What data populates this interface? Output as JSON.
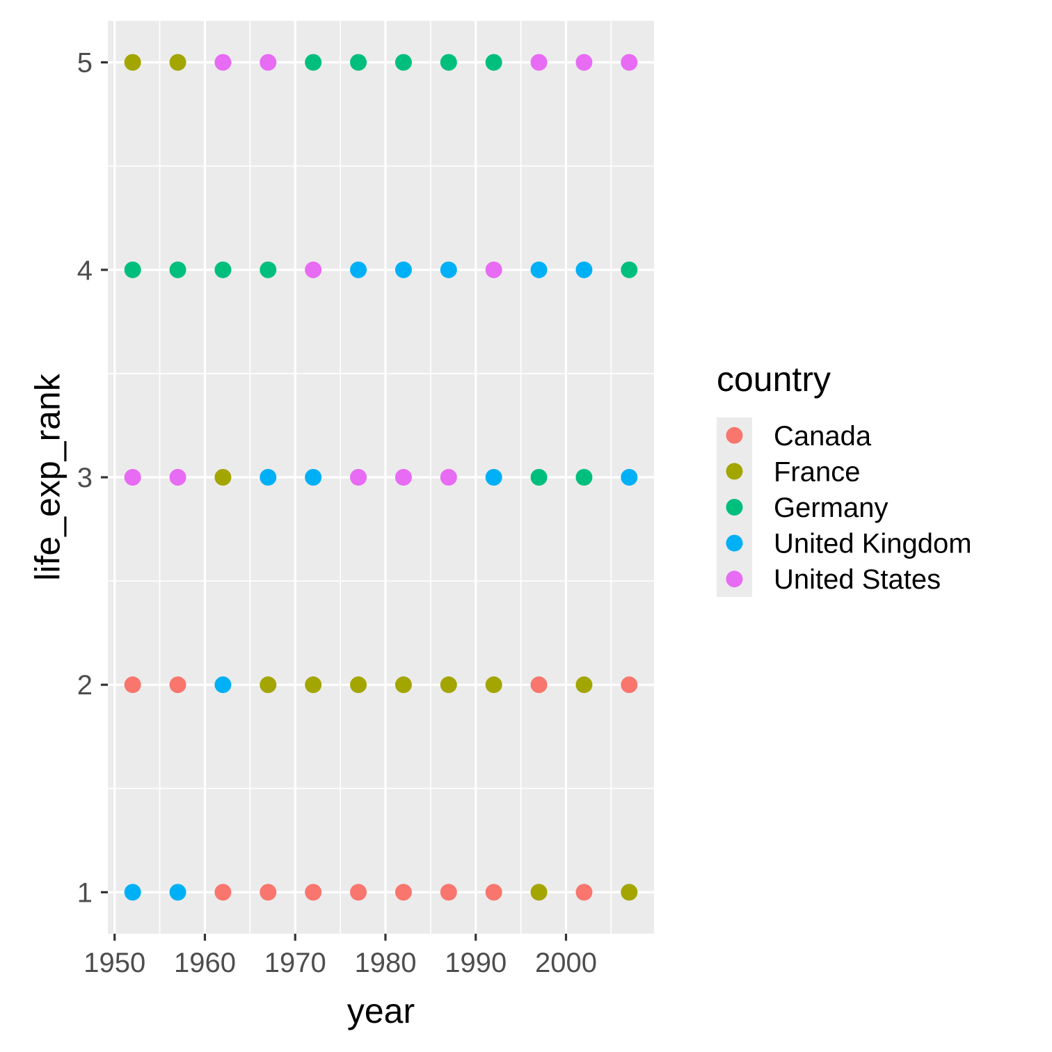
{
  "chart_data": {
    "type": "scatter",
    "xlabel": "year",
    "ylabel": "life_exp_rank",
    "xlim": [
      1949.25,
      2009.75
    ],
    "ylim": [
      0.8,
      5.2
    ],
    "x_ticks": [
      1950,
      1960,
      1970,
      1980,
      1990,
      2000
    ],
    "y_ticks": [
      1,
      2,
      3,
      4,
      5
    ],
    "grid": true,
    "legend": {
      "title": "country",
      "position": "right"
    },
    "series": [
      {
        "name": "Canada",
        "color": "#F8766D",
        "x": [
          1952,
          1957,
          1962,
          1967,
          1972,
          1977,
          1982,
          1987,
          1992,
          1997,
          2002,
          2007
        ],
        "y": [
          2,
          2,
          1,
          1,
          1,
          1,
          1,
          1,
          1,
          2,
          1,
          2
        ]
      },
      {
        "name": "France",
        "color": "#A3A500",
        "x": [
          1952,
          1957,
          1962,
          1967,
          1972,
          1977,
          1982,
          1987,
          1992,
          1997,
          2002,
          2007
        ],
        "y": [
          5,
          5,
          3,
          2,
          2,
          2,
          2,
          2,
          2,
          1,
          2,
          1
        ]
      },
      {
        "name": "Germany",
        "color": "#00BF7D",
        "x": [
          1952,
          1957,
          1962,
          1967,
          1972,
          1977,
          1982,
          1987,
          1992,
          1997,
          2002,
          2007
        ],
        "y": [
          4,
          4,
          4,
          4,
          5,
          5,
          5,
          5,
          5,
          3,
          3,
          4
        ]
      },
      {
        "name": "United Kingdom",
        "color": "#00B0F6",
        "x": [
          1952,
          1957,
          1962,
          1967,
          1972,
          1977,
          1982,
          1987,
          1992,
          1997,
          2002,
          2007
        ],
        "y": [
          1,
          1,
          2,
          3,
          3,
          4,
          4,
          4,
          3,
          4,
          4,
          3
        ]
      },
      {
        "name": "United States",
        "color": "#E76BF3",
        "x": [
          1952,
          1957,
          1962,
          1967,
          1972,
          1977,
          1982,
          1987,
          1992,
          1997,
          2002,
          2007
        ],
        "y": [
          3,
          3,
          5,
          5,
          4,
          3,
          3,
          3,
          4,
          5,
          5,
          5
        ]
      }
    ]
  }
}
